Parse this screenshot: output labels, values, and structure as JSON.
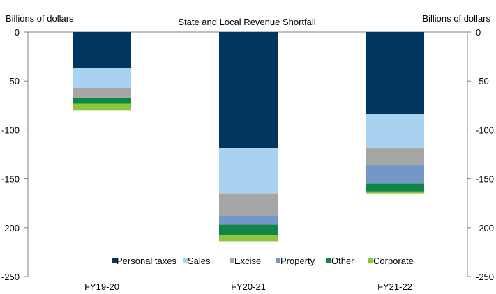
{
  "chart_data": {
    "type": "bar",
    "stacked": true,
    "title": "State and Local Revenue  Shortfall",
    "ylabel_left": "Billions of dollars",
    "ylabel_right": "Billions of dollars",
    "ylim": [
      -250,
      0
    ],
    "yticks": [
      0,
      -50,
      -100,
      -150,
      -200,
      -250
    ],
    "categories": [
      "FY19-20",
      "FY20-21",
      "FY21-22"
    ],
    "series": [
      {
        "name": "Personal taxes",
        "color": "#003660",
        "values": [
          -37,
          -119,
          -84
        ]
      },
      {
        "name": "Sales",
        "color": "#A9D2F0",
        "values": [
          -20,
          -46,
          -35
        ]
      },
      {
        "name": "Excise",
        "color": "#A6A6A6",
        "values": [
          -10,
          -23,
          -17
        ]
      },
      {
        "name": "Property",
        "color": "#7398C8",
        "values": [
          0,
          -9,
          -19
        ]
      },
      {
        "name": "Other",
        "color": "#108646",
        "values": [
          -6,
          -11,
          -8
        ]
      },
      {
        "name": "Corporate",
        "color": "#8CC63F",
        "values": [
          -7,
          -6,
          -2
        ]
      }
    ],
    "legend_position": "bottom-center",
    "grid": false
  }
}
